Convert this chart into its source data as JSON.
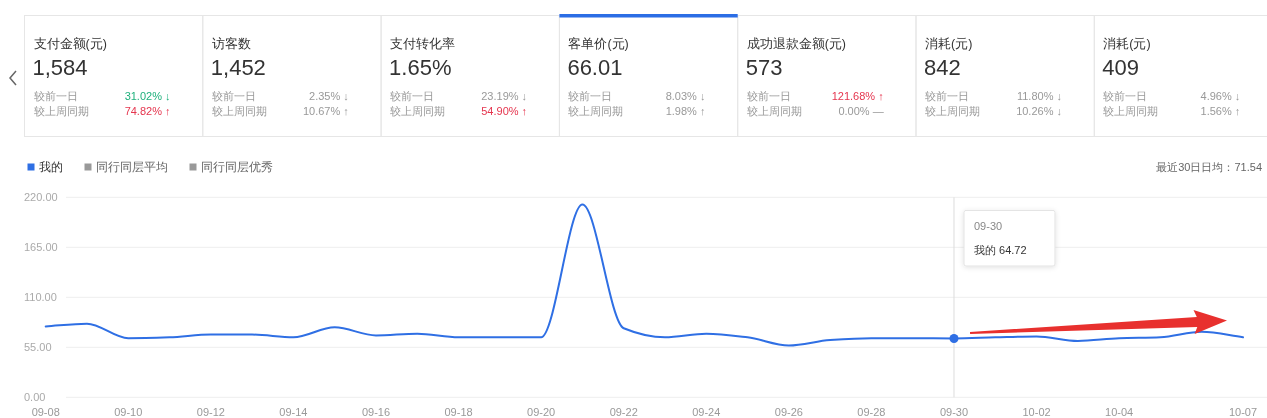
{
  "chart_data": [
    {
      "type": "other",
      "title": "支付金额(元)",
      "annotations": [
        "1,584"
      ],
      "categories": [
        "较前一日",
        "较上周同期"
      ],
      "value_labels": [
        "31.02% ↓",
        "74.82% ↑"
      ],
      "colors": [
        "#1fb07c",
        "#e5354e"
      ]
    },
    {
      "type": "other",
      "title": "访客数",
      "annotations": [
        "1,452"
      ],
      "categories": [
        "较前一日",
        "较上周同期"
      ],
      "value_labels": [
        "2.35% ↓",
        "10.67% ↑"
      ],
      "colors": [
        "#999999",
        "#999999"
      ]
    },
    {
      "type": "other",
      "title": "支付转化率",
      "annotations": [
        "1.65%"
      ],
      "categories": [
        "较前一日",
        "较上周同期"
      ],
      "value_labels": [
        "23.19% ↓",
        "54.90% ↑"
      ],
      "colors": [
        "#999999",
        "#e5354e"
      ]
    },
    {
      "type": "other",
      "title": "客单价(元)",
      "annotations": [
        "66.01"
      ],
      "categories": [
        "较前一日",
        "较上周同期"
      ],
      "value_labels": [
        "8.03% ↓",
        "1.98% ↑"
      ],
      "colors": [
        "#999999",
        "#999999"
      ],
      "color": "#2b6de5"
    },
    {
      "type": "other",
      "title": "成功退款金额(元)",
      "annotations": [
        "573"
      ],
      "categories": [
        "较前一日",
        "较上周同期"
      ],
      "value_labels": [
        "121.68% ↑",
        "0.00% —"
      ],
      "colors": [
        "#e5354e",
        "#999999"
      ]
    },
    {
      "type": "other",
      "title": "消耗(元)",
      "annotations": [
        "842"
      ],
      "categories": [
        "较前一日",
        "较上周同期"
      ],
      "value_labels": [
        "11.80% ↓",
        "10.26% ↓"
      ],
      "colors": [
        "#999999",
        "#999999"
      ]
    },
    {
      "type": "other",
      "title": "消耗(元)",
      "annotations": [
        "409"
      ],
      "categories": [
        "较前一日",
        "较上周同期"
      ],
      "value_labels": [
        "4.96% ↓",
        "1.56% ↑"
      ],
      "colors": [
        "#999999",
        "#999999"
      ]
    },
    {
      "type": "line",
      "categories": [
        "09-08",
        null,
        "09-10",
        null,
        "09-12",
        null,
        "09-14",
        null,
        "09-16",
        null,
        "09-18",
        null,
        "09-20",
        null,
        "09-22",
        null,
        "09-24",
        null,
        "09-26",
        null,
        "09-28",
        null,
        "09-30",
        null,
        "10-02",
        null,
        "10-04",
        null,
        null,
        "10-07"
      ],
      "series": [
        {
          "name": "我的",
          "color": "#2f6fe4",
          "values": [
            78,
            81,
            65,
            66,
            69,
            69,
            66,
            77,
            68,
            70,
            66,
            66,
            66,
            212,
            76,
            66,
            70,
            66,
            57,
            63,
            65,
            65,
            64.72,
            66,
            67,
            62,
            65,
            66,
            72,
            66
          ]
        },
        {
          "name": "同行同层平均",
          "color": "#999999",
          "values": [
            null,
            null,
            null,
            null,
            null,
            null,
            null,
            null,
            null,
            null,
            null,
            null,
            null,
            null,
            null,
            null,
            null,
            null,
            null,
            null,
            null,
            null,
            null,
            null,
            null,
            null,
            null,
            null,
            null,
            null
          ]
        },
        {
          "name": "同行同层优秀",
          "color": "#999999",
          "values": [
            null,
            null,
            null,
            null,
            null,
            null,
            null,
            null,
            null,
            null,
            null,
            null,
            null,
            null,
            null,
            null,
            null,
            null,
            null,
            null,
            null,
            null,
            null,
            null,
            null,
            null,
            null,
            null,
            null,
            null
          ]
        }
      ],
      "ylim": [
        0,
        220
      ],
      "yticks": [
        {
          "value": 0,
          "label": "0.00"
        },
        {
          "value": 55,
          "label": "55.00"
        },
        {
          "value": 110,
          "label": "110.00"
        },
        {
          "value": 165,
          "label": "165.00"
        },
        {
          "value": 220,
          "label": "220.00"
        }
      ],
      "grid": "y",
      "legend": "top left",
      "line_style": "solid",
      "ref_lines": [
        {
          "axis": "x",
          "value": "09-30",
          "color": "#dddddd"
        }
      ],
      "annotations": [
        {
          "text": "09-30",
          "x": "09-30",
          "y": 188
        },
        {
          "text": "我的 64.72",
          "x": "09-30",
          "y": 162
        },
        "最近30日日均：71.54"
      ]
    }
  ]
}
